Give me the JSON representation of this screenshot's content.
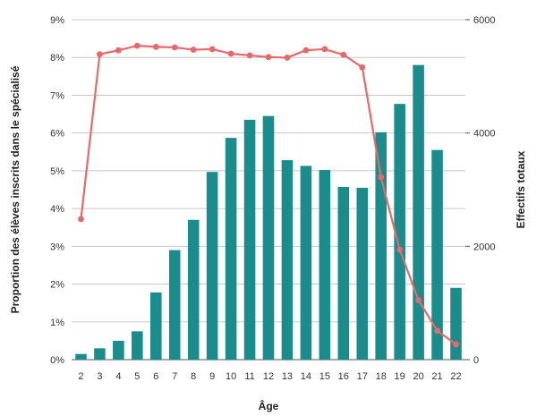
{
  "chart_data": {
    "type": "bar",
    "xlabel": "Âge",
    "ylabel_left": "Proportion des élèves inscrits dans le spécialisé",
    "ylabel_right": "Effectifs totaux",
    "ylim_left": [
      0,
      9
    ],
    "ylim_right": [
      0,
      6000
    ],
    "left_ticks": [
      "0%",
      "1%",
      "2%",
      "3%",
      "4%",
      "5%",
      "6%",
      "7%",
      "8%",
      "9%"
    ],
    "left_tick_values": [
      0,
      1,
      2,
      3,
      4,
      5,
      6,
      7,
      8,
      9
    ],
    "right_ticks": [
      "0",
      "2000",
      "4000",
      "6000"
    ],
    "right_tick_values": [
      0,
      2000,
      4000,
      6000
    ],
    "grid": true,
    "categories": [
      "2",
      "3",
      "4",
      "5",
      "6",
      "7",
      "8",
      "9",
      "10",
      "11",
      "12",
      "13",
      "14",
      "15",
      "16",
      "17",
      "18",
      "19",
      "20",
      "21",
      "22"
    ],
    "series": [
      {
        "type": "bar",
        "axis": "left",
        "color": "#1a8c8c",
        "values": [
          0.15,
          0.3,
          0.5,
          0.75,
          1.78,
          2.9,
          3.7,
          4.97,
          5.87,
          6.35,
          6.45,
          5.28,
          5.13,
          5.02,
          4.57,
          4.55,
          6.02,
          6.77,
          7.8,
          5.55,
          1.9
        ]
      },
      {
        "type": "line",
        "axis": "right",
        "color": "#e8696b",
        "values": [
          2480,
          5390,
          5460,
          5540,
          5520,
          5510,
          5470,
          5480,
          5400,
          5370,
          5340,
          5330,
          5460,
          5480,
          5380,
          5160,
          3220,
          1940,
          1050,
          510,
          270
        ]
      }
    ]
  }
}
